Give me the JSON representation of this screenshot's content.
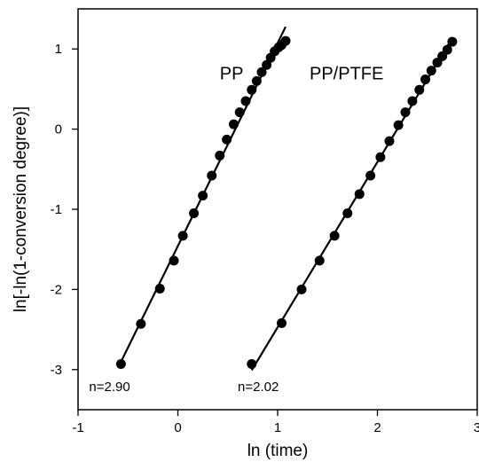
{
  "chart_data": {
    "type": "scatter",
    "title": "",
    "xlabel": "ln (time)",
    "ylabel": "ln[-ln(1-conversion degree)]",
    "xlim": [
      -1,
      3
    ],
    "ylim": [
      -3.5,
      1.5
    ],
    "xticks": [
      "-1",
      "0",
      "1",
      "2",
      "3"
    ],
    "yticks": [
      "1",
      "0",
      "-1",
      "-2",
      "-3"
    ],
    "xtick_values": [
      -1,
      0,
      1,
      2,
      3
    ],
    "ytick_values": [
      1,
      0,
      -1,
      -2,
      -3
    ],
    "grid": false,
    "legend": "none",
    "series": [
      {
        "name": "PP",
        "fit_label": "n=2.90",
        "x": [
          -0.57,
          -0.37,
          -0.18,
          -0.04,
          0.05,
          0.16,
          0.25,
          0.34,
          0.42,
          0.49,
          0.56,
          0.62,
          0.68,
          0.74,
          0.79,
          0.84,
          0.89,
          0.93,
          0.97,
          1.01,
          1.04,
          1.08
        ],
        "y": [
          -2.93,
          -2.43,
          -1.99,
          -1.64,
          -1.33,
          -1.05,
          -0.83,
          -0.58,
          -0.33,
          -0.13,
          0.06,
          0.21,
          0.35,
          0.49,
          0.6,
          0.71,
          0.8,
          0.89,
          0.97,
          1.02,
          1.05,
          1.1
        ]
      },
      {
        "name": "PP/PTFE",
        "fit_label": "n=2.02",
        "x": [
          0.74,
          1.04,
          1.24,
          1.42,
          1.57,
          1.7,
          1.82,
          1.93,
          2.03,
          2.12,
          2.21,
          2.28,
          2.35,
          2.42,
          2.48,
          2.54,
          2.6,
          2.65,
          2.7,
          2.75
        ],
        "y": [
          -2.93,
          -2.42,
          -2.0,
          -1.64,
          -1.33,
          -1.05,
          -0.81,
          -0.58,
          -0.35,
          -0.15,
          0.05,
          0.21,
          0.35,
          0.49,
          0.62,
          0.73,
          0.83,
          0.91,
          0.99,
          1.09
        ]
      }
    ]
  }
}
